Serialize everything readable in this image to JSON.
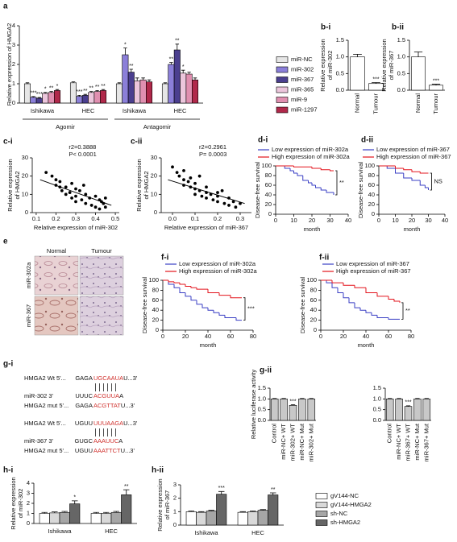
{
  "chart_data": [
    {
      "type": "bar",
      "panel": "a",
      "ylabel": [
        "Relative expression of HMGA2"
      ],
      "categories": [
        "Ishikawa",
        "HEC",
        "Ishikawa",
        "HEC"
      ],
      "group_labels": [
        "Agomir",
        "Antagomir"
      ],
      "ylim": [
        0,
        4
      ],
      "yticks": [
        0,
        1,
        2,
        3,
        4
      ],
      "series": [
        {
          "name": "miR-NC",
          "color": "#e6e6e6",
          "values": [
            1.0,
            1.05,
            1.0,
            1.0
          ],
          "errors": [
            0.05,
            0.05,
            0.05,
            0.05
          ],
          "significance": [
            null,
            null,
            null,
            null
          ]
        },
        {
          "name": "miR-302",
          "color": "#8b7fd9",
          "values": [
            0.3,
            0.35,
            2.5,
            2.0
          ],
          "errors": [
            0.04,
            0.05,
            0.35,
            0.1
          ],
          "significance": [
            "***",
            "***",
            "*",
            "**"
          ]
        },
        {
          "name": "miR-367",
          "color": "#4b3f8f",
          "values": [
            0.25,
            0.4,
            1.6,
            2.75
          ],
          "errors": [
            0.04,
            0.05,
            0.15,
            0.3
          ],
          "significance": [
            "***",
            "**",
            "**",
            "**"
          ]
        },
        {
          "name": "miR-365",
          "color": "#ecc6dc",
          "values": [
            0.5,
            0.55,
            1.15,
            1.55
          ],
          "errors": [
            0.05,
            0.05,
            0.15,
            0.15
          ],
          "significance": [
            "*",
            "**",
            null,
            "*"
          ]
        },
        {
          "name": "miR-9",
          "color": "#e08fb0",
          "values": [
            0.55,
            0.6,
            1.2,
            1.5
          ],
          "errors": [
            0.05,
            0.05,
            0.1,
            0.1
          ],
          "significance": [
            "**",
            "**",
            null,
            null
          ]
        },
        {
          "name": "miR-1297",
          "color": "#b0284a",
          "values": [
            0.65,
            0.65,
            1.1,
            1.2
          ],
          "errors": [
            0.05,
            0.05,
            0.1,
            0.1
          ],
          "significance": [
            "*",
            "**",
            null,
            null
          ]
        }
      ]
    },
    {
      "type": "bar",
      "panel": "b-i",
      "ylabel": [
        "Relative expression",
        "of miR-302"
      ],
      "categories": [
        "Normal",
        "Tumour"
      ],
      "ylim": [
        0,
        1.5
      ],
      "yticks": [
        {
          "value": 0,
          "label": "0.0"
        },
        0.5,
        {
          "value": 1,
          "label": "1.0"
        },
        1.5
      ],
      "series": [
        {
          "color": "#ffffff",
          "values": [
            1.0,
            0.2
          ],
          "errors": [
            0.08,
            0.03
          ],
          "significance": [
            null,
            "***"
          ]
        }
      ]
    },
    {
      "type": "bar",
      "panel": "b-ii",
      "ylabel": [
        "Relative expression",
        "of miR-367"
      ],
      "categories": [
        "Normal",
        "Tumour"
      ],
      "ylim": [
        0,
        1.5
      ],
      "yticks": [
        {
          "value": 0,
          "label": "0.0"
        },
        0.5,
        {
          "value": 1,
          "label": "1.0"
        },
        1.5
      ],
      "series": [
        {
          "color": "#ffffff",
          "values": [
            1.0,
            0.15
          ],
          "errors": [
            0.15,
            0.03
          ],
          "significance": [
            null,
            "***"
          ]
        }
      ]
    },
    {
      "type": "scatter",
      "panel": "c-i",
      "ylabel": [
        "Relative expression",
        "of HMGA2"
      ],
      "xlabel": [
        "Relative expression of miR-302"
      ],
      "annotations": [
        "r2=0.3888",
        "P< 0.0001"
      ],
      "xlim": [
        0.08,
        0.52
      ],
      "xticks": [
        0.1,
        0.2,
        0.3,
        0.4,
        0.5
      ],
      "ylim": [
        0,
        30
      ],
      "yticks": [
        0,
        10,
        20,
        30
      ],
      "x": [
        0.15,
        0.18,
        0.2,
        0.2,
        0.22,
        0.23,
        0.25,
        0.25,
        0.27,
        0.28,
        0.3,
        0.3,
        0.3,
        0.32,
        0.33,
        0.35,
        0.35,
        0.37,
        0.38,
        0.4,
        0.4,
        0.42,
        0.42,
        0.44,
        0.45,
        0.45,
        0.28,
        0.22,
        0.34,
        0.43
      ],
      "y": [
        22,
        20,
        18,
        15,
        17,
        12,
        14,
        10,
        11,
        8,
        9,
        13,
        6,
        12,
        7,
        10,
        5,
        8,
        4,
        9,
        3,
        7,
        2,
        5,
        3,
        8,
        16,
        14,
        15,
        6
      ],
      "fit": {
        "x": [
          0.12,
          0.48
        ],
        "y": [
          18,
          4
        ]
      }
    },
    {
      "type": "scatter",
      "panel": "c-ii",
      "ylabel": [
        "Relative expression",
        "of HMGA2"
      ],
      "xlabel": [
        "Relative expression of miR-367"
      ],
      "annotations": [
        "r2=0.2961",
        "P= 0.0003"
      ],
      "xlim": [
        -0.05,
        0.35
      ],
      "xticks": [
        {
          "value": 0,
          "label": "0.0"
        },
        0.1,
        0.2,
        0.3
      ],
      "ylim": [
        0,
        30
      ],
      "yticks": [
        0,
        10,
        20,
        30
      ],
      "x": [
        0.0,
        0.02,
        0.03,
        0.05,
        0.05,
        0.07,
        0.08,
        0.1,
        0.1,
        0.12,
        0.13,
        0.15,
        0.15,
        0.17,
        0.18,
        0.2,
        0.2,
        0.22,
        0.23,
        0.25,
        0.25,
        0.27,
        0.28,
        0.3,
        0.05,
        0.1,
        0.15,
        0.2,
        0.12,
        0.08
      ],
      "y": [
        25,
        22,
        20,
        18,
        15,
        17,
        14,
        13,
        10,
        12,
        9,
        11,
        8,
        10,
        7,
        9,
        6,
        12,
        5,
        8,
        4,
        6,
        3,
        5,
        23,
        16,
        14,
        11,
        20,
        19
      ],
      "fit": {
        "x": [
          -0.02,
          0.32
        ],
        "y": [
          18,
          5
        ]
      }
    },
    {
      "type": "survival",
      "panel": "d-i",
      "ylabel": [
        "Disease-free survival"
      ],
      "xlabel": [
        "month"
      ],
      "annotation": "**",
      "xlim": [
        0,
        40
      ],
      "xticks": [
        0,
        10,
        20,
        30,
        40
      ],
      "ylim": [
        0,
        100
      ],
      "yticks": [
        0,
        20,
        40,
        60,
        80,
        100
      ],
      "series": [
        {
          "name": "Low expression of miR-302a",
          "color": "#3a3fc4",
          "x": [
            0,
            5,
            8,
            10,
            12,
            15,
            18,
            20,
            22,
            25,
            28,
            32
          ],
          "y": [
            100,
            95,
            90,
            85,
            80,
            70,
            65,
            60,
            55,
            50,
            45,
            40
          ]
        },
        {
          "name": "High expression of miR-302a",
          "color": "#e3141c",
          "x": [
            0,
            10,
            20,
            25,
            30,
            32
          ],
          "y": [
            100,
            98,
            95,
            92,
            90,
            90
          ]
        }
      ]
    },
    {
      "type": "survival",
      "panel": "d-ii",
      "ylabel": [
        "Disease-free survival"
      ],
      "xlabel": [
        "month"
      ],
      "annotation": "NS",
      "xlim": [
        0,
        40
      ],
      "xticks": [
        0,
        10,
        20,
        30,
        40
      ],
      "ylim": [
        0,
        100
      ],
      "yticks": [
        0,
        20,
        40,
        60,
        80,
        100
      ],
      "series": [
        {
          "name": "Low expression of miR-367",
          "color": "#3a3fc4",
          "x": [
            0,
            5,
            10,
            15,
            20,
            25,
            28,
            30
          ],
          "y": [
            100,
            95,
            85,
            75,
            70,
            60,
            55,
            50
          ]
        },
        {
          "name": "High expression of miR-367",
          "color": "#e3141c",
          "x": [
            0,
            10,
            15,
            20,
            25,
            30
          ],
          "y": [
            100,
            95,
            92,
            88,
            85,
            85
          ]
        }
      ]
    },
    {
      "type": "survival",
      "panel": "f-i",
      "ylabel": [
        "Disease-free survival"
      ],
      "xlabel": [
        "month"
      ],
      "annotation": "***",
      "xlim": [
        0,
        80
      ],
      "xticks": [
        0,
        20,
        40,
        60,
        80
      ],
      "ylim": [
        0,
        100
      ],
      "yticks": [
        0,
        20,
        40,
        60,
        80,
        100
      ],
      "series": [
        {
          "name": "Low expression of miR-302a",
          "color": "#3a3fc4",
          "x": [
            0,
            5,
            10,
            15,
            20,
            25,
            30,
            35,
            40,
            45,
            50,
            55,
            60,
            65,
            70
          ],
          "y": [
            100,
            92,
            85,
            75,
            68,
            60,
            52,
            45,
            40,
            35,
            30,
            25,
            25,
            20,
            20
          ]
        },
        {
          "name": "High expression of miR-302a",
          "color": "#e3141c",
          "x": [
            0,
            5,
            10,
            15,
            20,
            25,
            30,
            40,
            50,
            60,
            70
          ],
          "y": [
            100,
            97,
            95,
            92,
            88,
            85,
            82,
            75,
            70,
            65,
            65
          ]
        }
      ]
    },
    {
      "type": "survival",
      "panel": "f-ii",
      "ylabel": [
        "Disease-free survival"
      ],
      "xlabel": [
        "month"
      ],
      "annotation": "**",
      "xlim": [
        0,
        80
      ],
      "xticks": [
        0,
        20,
        40,
        60,
        80
      ],
      "ylim": [
        0,
        100
      ],
      "yticks": [
        0,
        20,
        40,
        60,
        80,
        100
      ],
      "series": [
        {
          "name": "Low expression of miR-367",
          "color": "#3a3fc4",
          "x": [
            0,
            5,
            10,
            15,
            20,
            25,
            30,
            35,
            40,
            45,
            50,
            60,
            70
          ],
          "y": [
            100,
            95,
            85,
            75,
            65,
            55,
            45,
            40,
            35,
            30,
            25,
            22,
            22
          ]
        },
        {
          "name": "High expression of miR-367",
          "color": "#e3141c",
          "x": [
            0,
            10,
            20,
            30,
            40,
            50,
            60,
            65,
            70
          ],
          "y": [
            100,
            95,
            90,
            85,
            75,
            68,
            62,
            58,
            55
          ]
        }
      ]
    },
    {
      "type": "bar",
      "panel": "g-ii",
      "ylabel": [
        "Relative luciferase activity"
      ],
      "categories": [
        "Control",
        "miR-NC+ WT",
        "miR-302+ WT",
        "miR-NC+ Mut",
        "miR-302+ Mut"
      ],
      "ylim": [
        0,
        1.5
      ],
      "yticks": [
        {
          "value": 0,
          "label": "0.0"
        },
        0.5,
        {
          "value": 1,
          "label": "1.0"
        },
        1.5
      ],
      "series": [
        {
          "color": "#c8c8c8",
          "values": [
            1.0,
            1.0,
            0.7,
            1.0,
            1.0
          ],
          "errors": [
            0.02,
            0.02,
            0.03,
            0.02,
            0.02
          ],
          "significance": [
            null,
            null,
            "***",
            null,
            null
          ]
        }
      ]
    },
    {
      "type": "bar",
      "categories": [
        "Control",
        "miR-NC+ WT",
        "miR-367+ WT",
        "miR-NC+ Mut",
        "miR-367+ Mut"
      ],
      "ylim": [
        0,
        1.5
      ],
      "yticks": [
        {
          "value": 0,
          "label": "0.0"
        },
        0.5,
        {
          "value": 1,
          "label": "1.0"
        },
        1.5
      ],
      "series": [
        {
          "color": "#c8c8c8",
          "values": [
            1.0,
            1.0,
            0.65,
            1.0,
            1.0
          ],
          "errors": [
            0.02,
            0.02,
            0.03,
            0.02,
            0.02
          ],
          "significance": [
            null,
            null,
            "***",
            null,
            null
          ]
        }
      ]
    },
    {
      "type": "bar",
      "panel": "h-i",
      "ylabel": [
        "Relative expression",
        "of miR-302"
      ],
      "categories": [
        "Ishikawa",
        "HEC"
      ],
      "ylim": [
        0,
        4
      ],
      "yticks": [
        0,
        1,
        2,
        3,
        4
      ],
      "series": [
        {
          "color": "#ffffff",
          "values": [
            1.0,
            1.0
          ],
          "errors": [
            0.1,
            0.1
          ],
          "significance": [
            null,
            null
          ]
        },
        {
          "color": "#d9d9d9",
          "values": [
            1.05,
            1.0
          ],
          "errors": [
            0.1,
            0.1
          ],
          "significance": [
            null,
            null
          ]
        },
        {
          "color": "#a6a6a6",
          "values": [
            1.1,
            1.1
          ],
          "errors": [
            0.1,
            0.1
          ],
          "significance": [
            null,
            null
          ]
        },
        {
          "color": "#666666",
          "values": [
            1.95,
            2.85
          ],
          "errors": [
            0.3,
            0.5
          ],
          "significance": [
            "*",
            "**"
          ]
        }
      ]
    },
    {
      "type": "bar",
      "panel": "h-ii",
      "ylabel": [
        "Relative expression",
        "of miR-367"
      ],
      "categories": [
        "Ishikawa",
        "HEC"
      ],
      "ylim": [
        0,
        3
      ],
      "yticks": [
        0,
        1,
        2,
        3
      ],
      "series": [
        {
          "name": "gV144-NC",
          "color": "#ffffff",
          "values": [
            1.0,
            0.95
          ],
          "errors": [
            0.05,
            0.05
          ],
          "significance": [
            null,
            null
          ]
        },
        {
          "name": "gV144-HMGA2",
          "color": "#d9d9d9",
          "values": [
            0.95,
            1.0
          ],
          "errors": [
            0.05,
            0.05
          ],
          "significance": [
            null,
            null
          ]
        },
        {
          "name": "sh-NC",
          "color": "#a6a6a6",
          "values": [
            1.05,
            1.1
          ],
          "errors": [
            0.05,
            0.05
          ],
          "significance": [
            null,
            null
          ]
        },
        {
          "name": "sh-HMGA2",
          "color": "#666666",
          "values": [
            2.3,
            2.25
          ],
          "errors": [
            0.2,
            0.15
          ],
          "significance": [
            "***",
            "**"
          ]
        }
      ]
    }
  ],
  "image_panel": {
    "panel": "e",
    "columns": [
      "Normal",
      "Tumour"
    ],
    "rows": [
      "miR-302a",
      "miR-367"
    ]
  },
  "sequence_panel": {
    "panel": "g-i",
    "groups": [
      {
        "target": {
          "label": "HMGA2 Wt 5'...",
          "prefix": "GAGA",
          "site": "UGCAAUA",
          "suffix": "U...3'"
        },
        "mirna": {
          "label": "miR-302 3'",
          "prefix": "UUUC",
          "site": "ACGUUA",
          "suffix": "A"
        },
        "mutant": {
          "label": "HMGA2 mut 5'...",
          "prefix": "GAGA",
          "site": "ACGTTAT",
          "suffix": "U...3'"
        }
      },
      {
        "target": {
          "label": "HMGA2 Wt 5'...",
          "prefix": "UGUU",
          "site": "UUUAAGA",
          "suffix": "U...3'"
        },
        "mirna": {
          "label": "miR-367 3'",
          "prefix": "GUGC",
          "site": "AAAUUC",
          "suffix": "A"
        },
        "mutant": {
          "label": "HMGA2 mut 5'...",
          "prefix": "UGUU",
          "site": "AAATTCT",
          "suffix": "U...3'"
        }
      }
    ]
  }
}
